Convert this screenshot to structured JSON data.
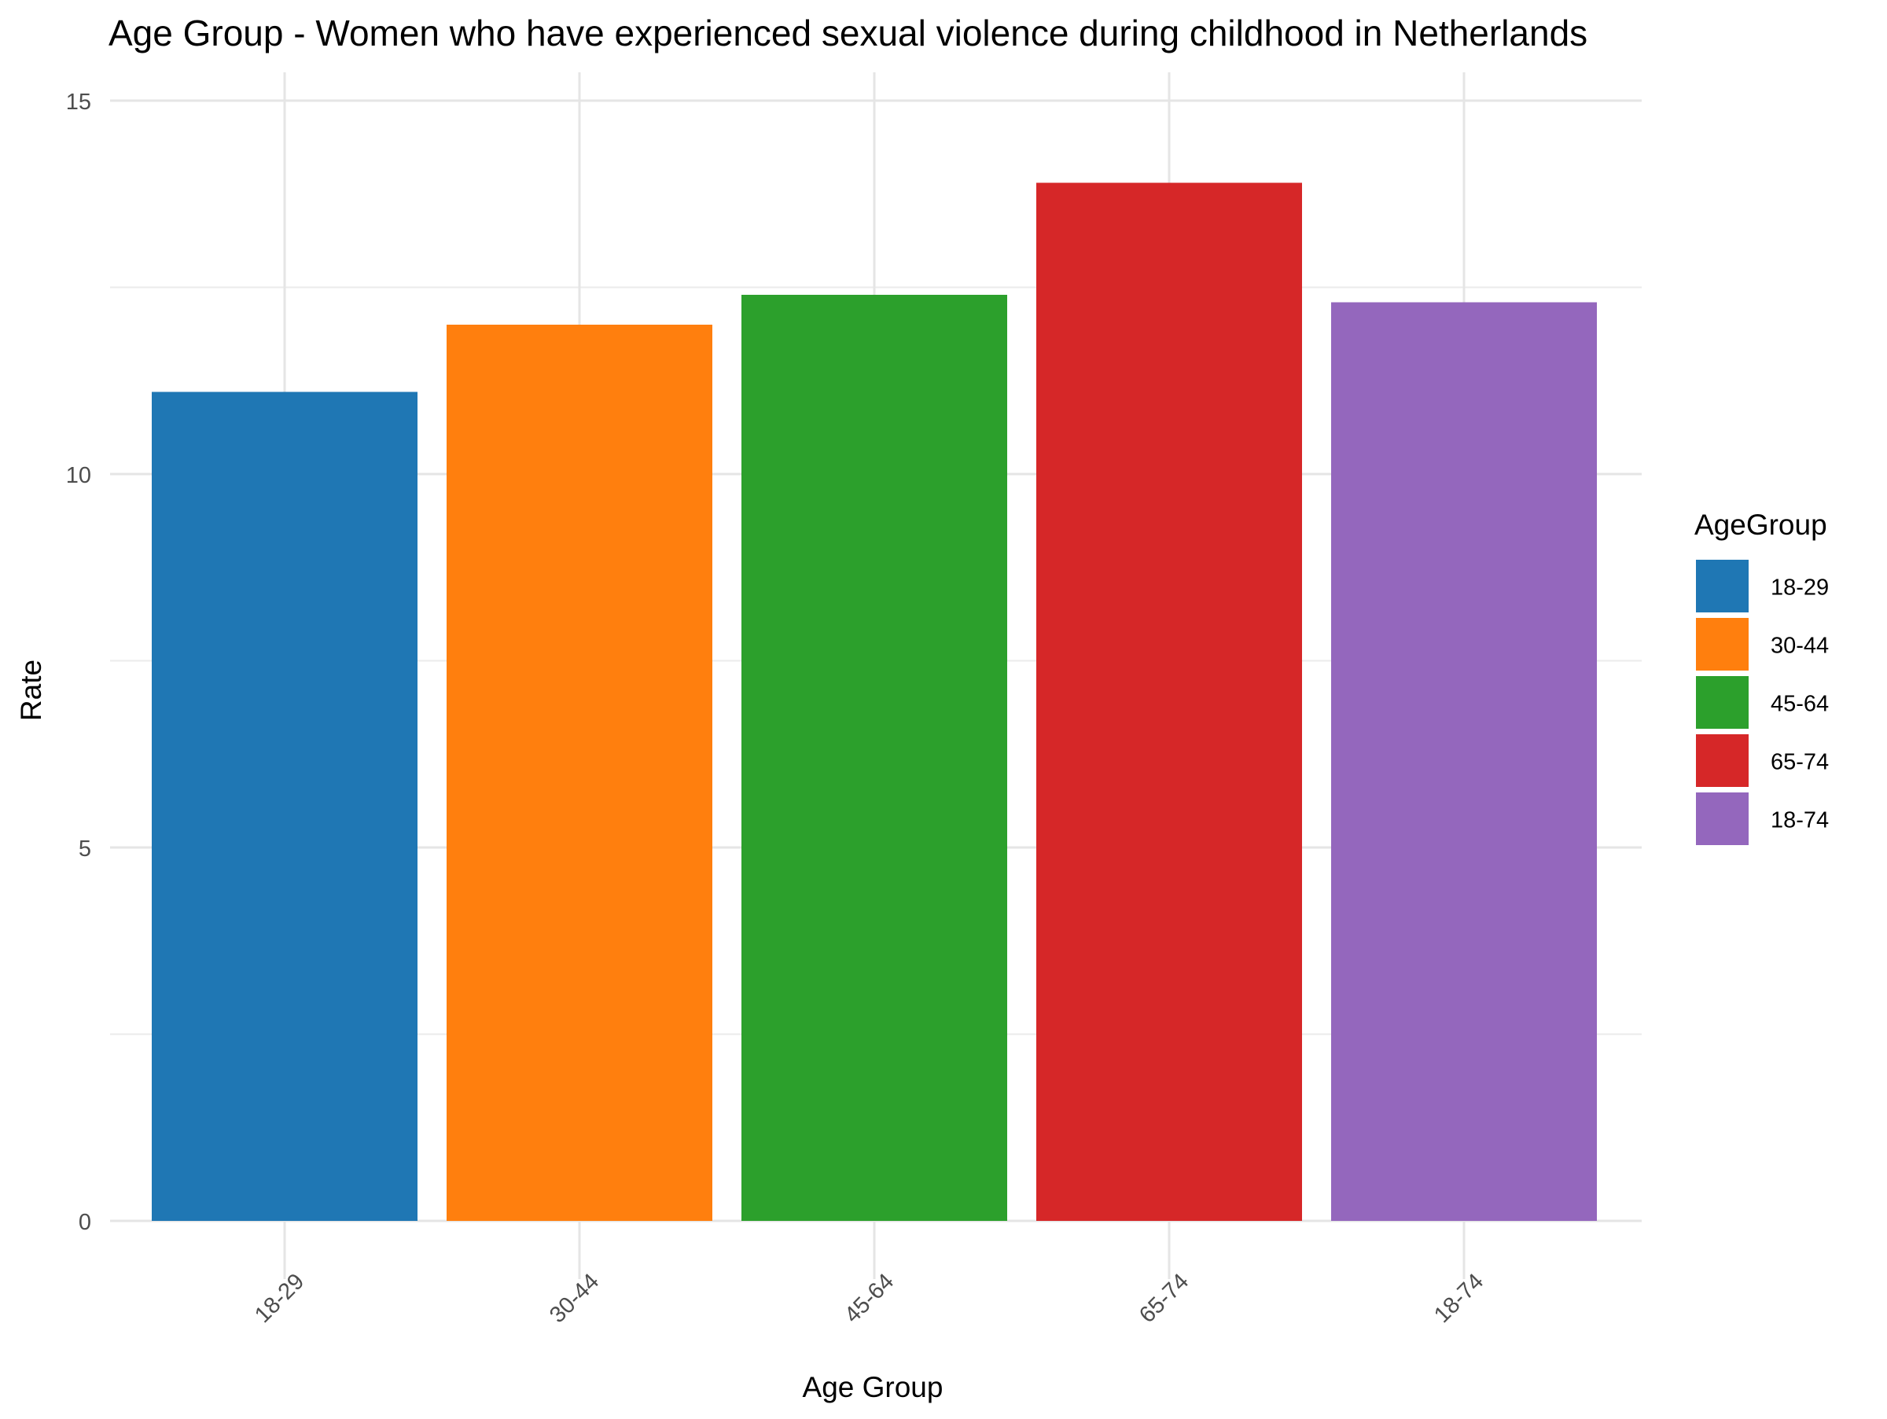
{
  "chart_data": {
    "type": "bar",
    "title": "Age Group - Women who have experienced sexual violence during childhood in Netherlands",
    "xlabel": "Age Group",
    "ylabel": "Rate",
    "categories": [
      "18-29",
      "30-44",
      "45-64",
      "65-74",
      "18-74"
    ],
    "values": [
      11.1,
      12.0,
      12.4,
      13.9,
      12.3
    ],
    "colors": [
      "#1f77b4",
      "#ff7f0e",
      "#2ca02c",
      "#d62728",
      "#9467bd"
    ],
    "ylim": [
      0,
      15
    ],
    "yticks": [
      0,
      5,
      10,
      15
    ],
    "ytick_labels": [
      "0",
      "5",
      "10",
      "15"
    ],
    "grid": true,
    "legend": {
      "title": "AgeGroup",
      "position": "right",
      "items": [
        "18-29",
        "30-44",
        "45-64",
        "65-74",
        "18-74"
      ]
    }
  }
}
